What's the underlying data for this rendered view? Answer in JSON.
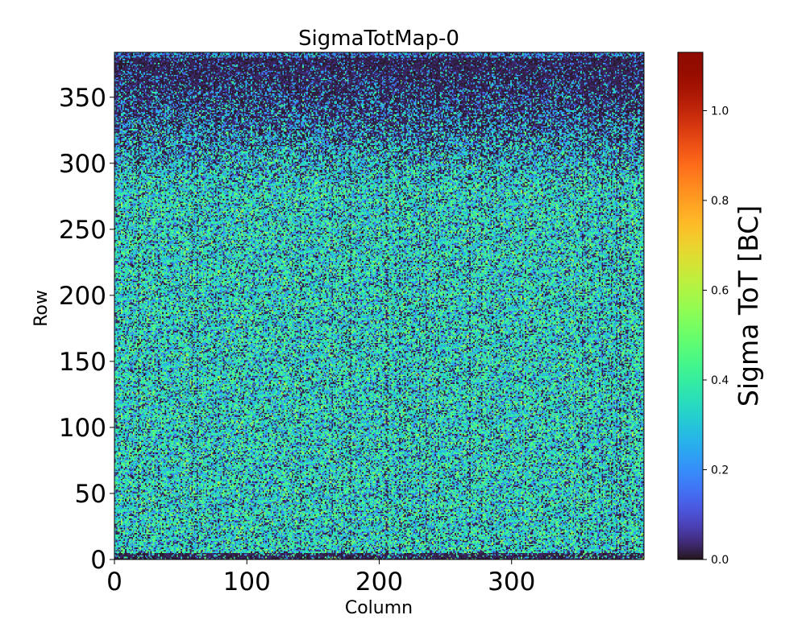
{
  "chart_data": {
    "type": "heatmap",
    "title": "SigmaTotMap-0",
    "xlabel": "Column",
    "ylabel": "Row",
    "xlim": [
      0,
      400
    ],
    "ylim": [
      0,
      384
    ],
    "xticks": [
      0,
      100,
      200,
      300
    ],
    "xtick_labels": [
      "0",
      "100",
      "200",
      "300"
    ],
    "yticks": [
      0,
      50,
      100,
      150,
      200,
      250,
      300,
      350
    ],
    "ytick_labels": [
      "0",
      "50",
      "100",
      "150",
      "200",
      "250",
      "300",
      "350"
    ],
    "grid": false,
    "colormap": "turbo",
    "colorbar": {
      "label": "Sigma ToT [BC]",
      "range": [
        0.0,
        1.13
      ],
      "ticks": [
        0.0,
        0.2,
        0.4,
        0.6,
        0.8,
        1.0
      ],
      "tick_labels": [
        "0.0",
        "0.2",
        "0.4",
        "0.6",
        "0.8",
        "1.0"
      ]
    },
    "grid_size": {
      "columns": 400,
      "rows": 384
    },
    "value_summary": {
      "typical_range": [
        0.0,
        0.55
      ],
      "dominant_value": 0.35,
      "note": "Per-pixel noise map; mostly 0.25–0.5 BC, many zero pixels, upper rows (~300–384) mostly near 0, bottom rows (0–5) near 0"
    }
  },
  "colors": {
    "cmap_low": "#30123b",
    "cmap_mid": "#1ae4b6",
    "cmap_high": "#7a0403",
    "axis": "#000000"
  }
}
